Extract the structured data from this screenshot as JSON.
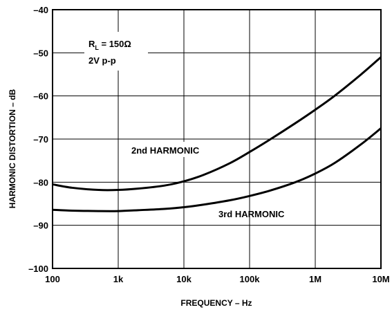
{
  "chart_data": {
    "type": "line",
    "xlabel": "FREQUENCY – Hz",
    "ylabel": "HARMONIC DISTORTION – dB",
    "x_scale": "log",
    "xlim": [
      100,
      10000000
    ],
    "ylim": [
      -100,
      -40
    ],
    "grid": true,
    "x_ticks": [
      100,
      1000,
      10000,
      100000,
      1000000,
      10000000
    ],
    "x_tick_labels": [
      "100",
      "1k",
      "10k",
      "100k",
      "1M",
      "10M"
    ],
    "y_ticks": [
      -40,
      -50,
      -60,
      -70,
      -80,
      -90,
      -100
    ],
    "y_tick_labels": [
      "–40",
      "–50",
      "–60",
      "–70",
      "–80",
      "–90",
      "–100"
    ],
    "conditions": {
      "rl_prefix": "R",
      "rl_sub": "L",
      "rl_value": " = 150Ω",
      "level": "2V p-p"
    },
    "series": [
      {
        "name": "2nd HARMONIC",
        "x": [
          100,
          200,
          500,
          1000,
          2000,
          5000,
          10000,
          20000,
          50000,
          100000,
          200000,
          500000,
          1000000,
          2000000,
          5000000,
          10000000
        ],
        "values": [
          -80.5,
          -81.3,
          -81.8,
          -81.8,
          -81.5,
          -80.8,
          -79.8,
          -78.3,
          -75.6,
          -73.0,
          -70.2,
          -66.3,
          -63.2,
          -59.9,
          -55.0,
          -51.0
        ]
      },
      {
        "name": "3rd HARMONIC",
        "x": [
          100,
          200,
          500,
          1000,
          2000,
          5000,
          10000,
          20000,
          50000,
          100000,
          200000,
          500000,
          1000000,
          2000000,
          5000000,
          10000000
        ],
        "values": [
          -86.4,
          -86.6,
          -86.7,
          -86.7,
          -86.5,
          -86.2,
          -85.8,
          -85.2,
          -84.2,
          -83.2,
          -82.0,
          -80.0,
          -78.0,
          -75.5,
          -71.2,
          -67.5
        ]
      }
    ]
  }
}
